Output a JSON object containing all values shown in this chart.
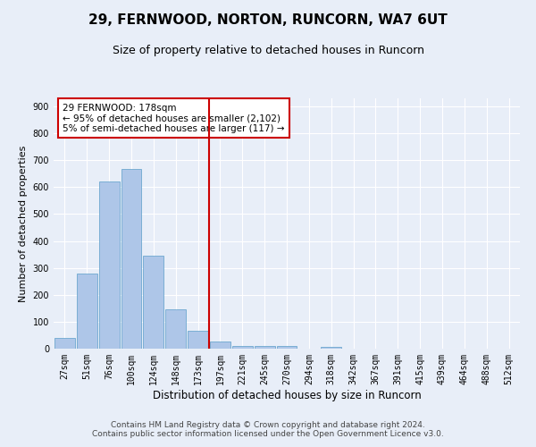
{
  "title": "29, FERNWOOD, NORTON, RUNCORN, WA7 6UT",
  "subtitle": "Size of property relative to detached houses in Runcorn",
  "xlabel": "Distribution of detached houses by size in Runcorn",
  "ylabel": "Number of detached properties",
  "categories": [
    "27sqm",
    "51sqm",
    "76sqm",
    "100sqm",
    "124sqm",
    "148sqm",
    "173sqm",
    "197sqm",
    "221sqm",
    "245sqm",
    "270sqm",
    "294sqm",
    "318sqm",
    "342sqm",
    "367sqm",
    "391sqm",
    "415sqm",
    "439sqm",
    "464sqm",
    "488sqm",
    "512sqm"
  ],
  "values": [
    40,
    278,
    620,
    668,
    345,
    145,
    65,
    25,
    11,
    10,
    10,
    0,
    6,
    0,
    0,
    0,
    0,
    0,
    0,
    0,
    0
  ],
  "bar_color": "#aec6e8",
  "bar_edge_color": "#5a9ec9",
  "background_color": "#e8eef8",
  "grid_color": "#ffffff",
  "vline_x": 6.5,
  "vline_color": "#cc0000",
  "annotation_text": "29 FERNWOOD: 178sqm\n← 95% of detached houses are smaller (2,102)\n5% of semi-detached houses are larger (117) →",
  "annotation_box_color": "#ffffff",
  "annotation_box_edge": "#cc0000",
  "ylim": [
    0,
    930
  ],
  "yticks": [
    0,
    100,
    200,
    300,
    400,
    500,
    600,
    700,
    800,
    900
  ],
  "footer_text": "Contains HM Land Registry data © Crown copyright and database right 2024.\nContains public sector information licensed under the Open Government Licence v3.0.",
  "title_fontsize": 11,
  "subtitle_fontsize": 9,
  "xlabel_fontsize": 8.5,
  "ylabel_fontsize": 8,
  "annotation_fontsize": 7.5,
  "footer_fontsize": 6.5,
  "tick_fontsize": 7
}
